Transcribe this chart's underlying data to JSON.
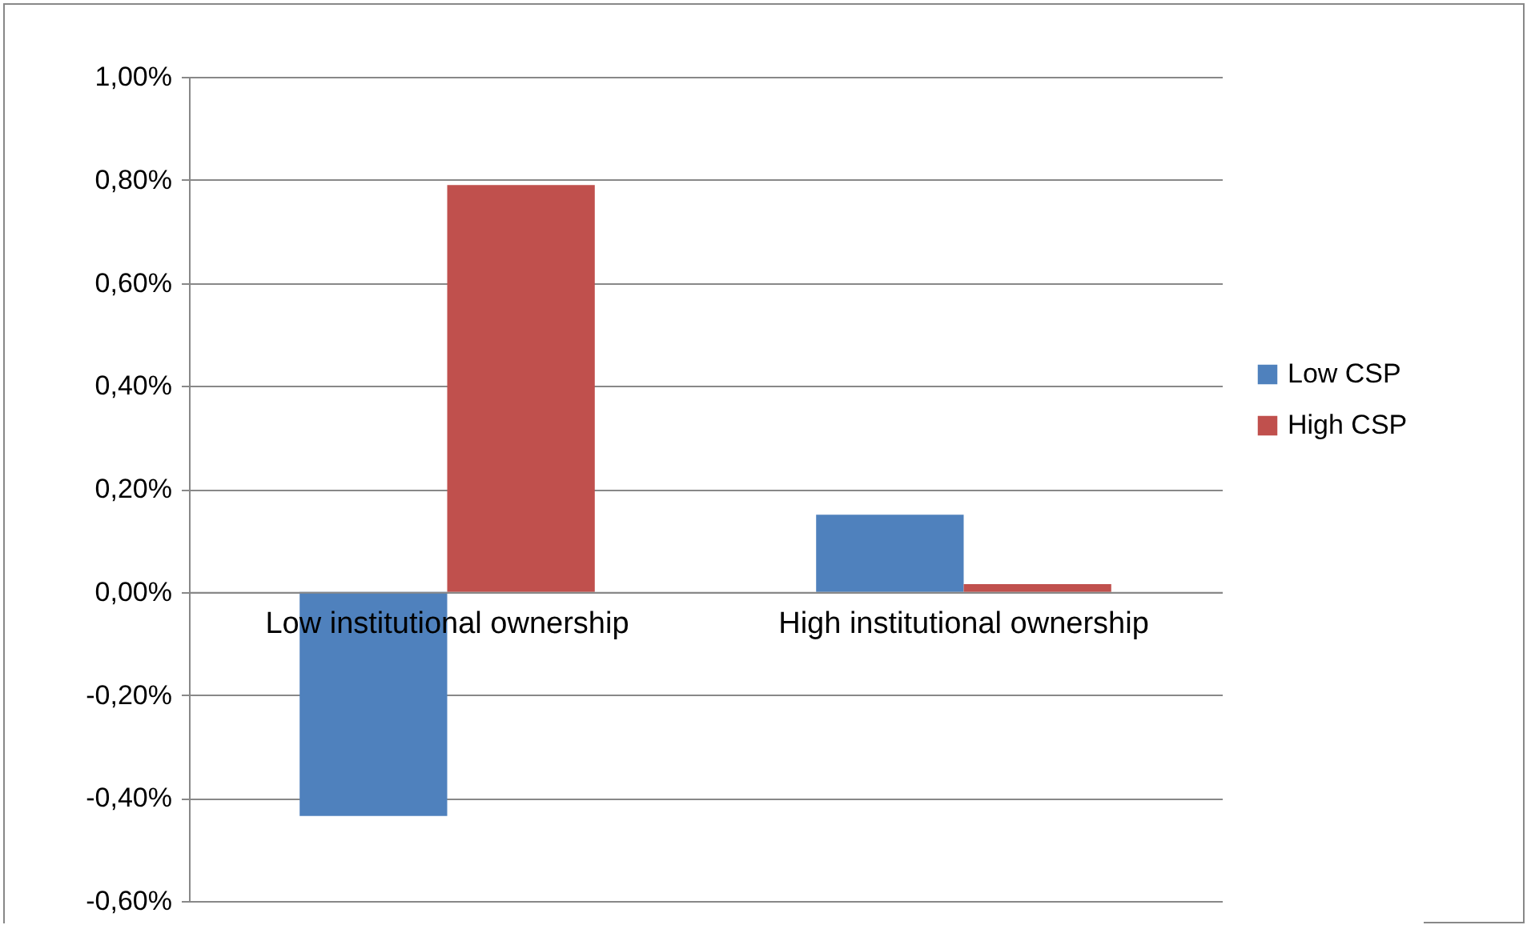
{
  "chart_data": {
    "type": "bar",
    "categories": [
      "Low institutional ownership",
      "High institutional ownership"
    ],
    "series": [
      {
        "name": "Low CSP",
        "color": "#4f81bd",
        "values": [
          -0.435,
          0.15
        ]
      },
      {
        "name": "High CSP",
        "color": "#c0504d",
        "values": [
          0.79,
          0.015
        ]
      }
    ],
    "ylim": [
      -0.6,
      1.0
    ],
    "yticks": [
      {
        "value": -0.6,
        "label": "-0,60%"
      },
      {
        "value": -0.4,
        "label": "-0,40%"
      },
      {
        "value": -0.2,
        "label": "-0,20%"
      },
      {
        "value": 0,
        "label": "0,00%"
      },
      {
        "value": 0.2,
        "label": "0,20%"
      },
      {
        "value": 0.4,
        "label": "0,40%"
      },
      {
        "value": 0.6,
        "label": "0,60%"
      },
      {
        "value": 0.8,
        "label": "0,80%"
      },
      {
        "value": 1.0,
        "label": "1,00%"
      }
    ],
    "grid": "y",
    "legend": "right"
  }
}
